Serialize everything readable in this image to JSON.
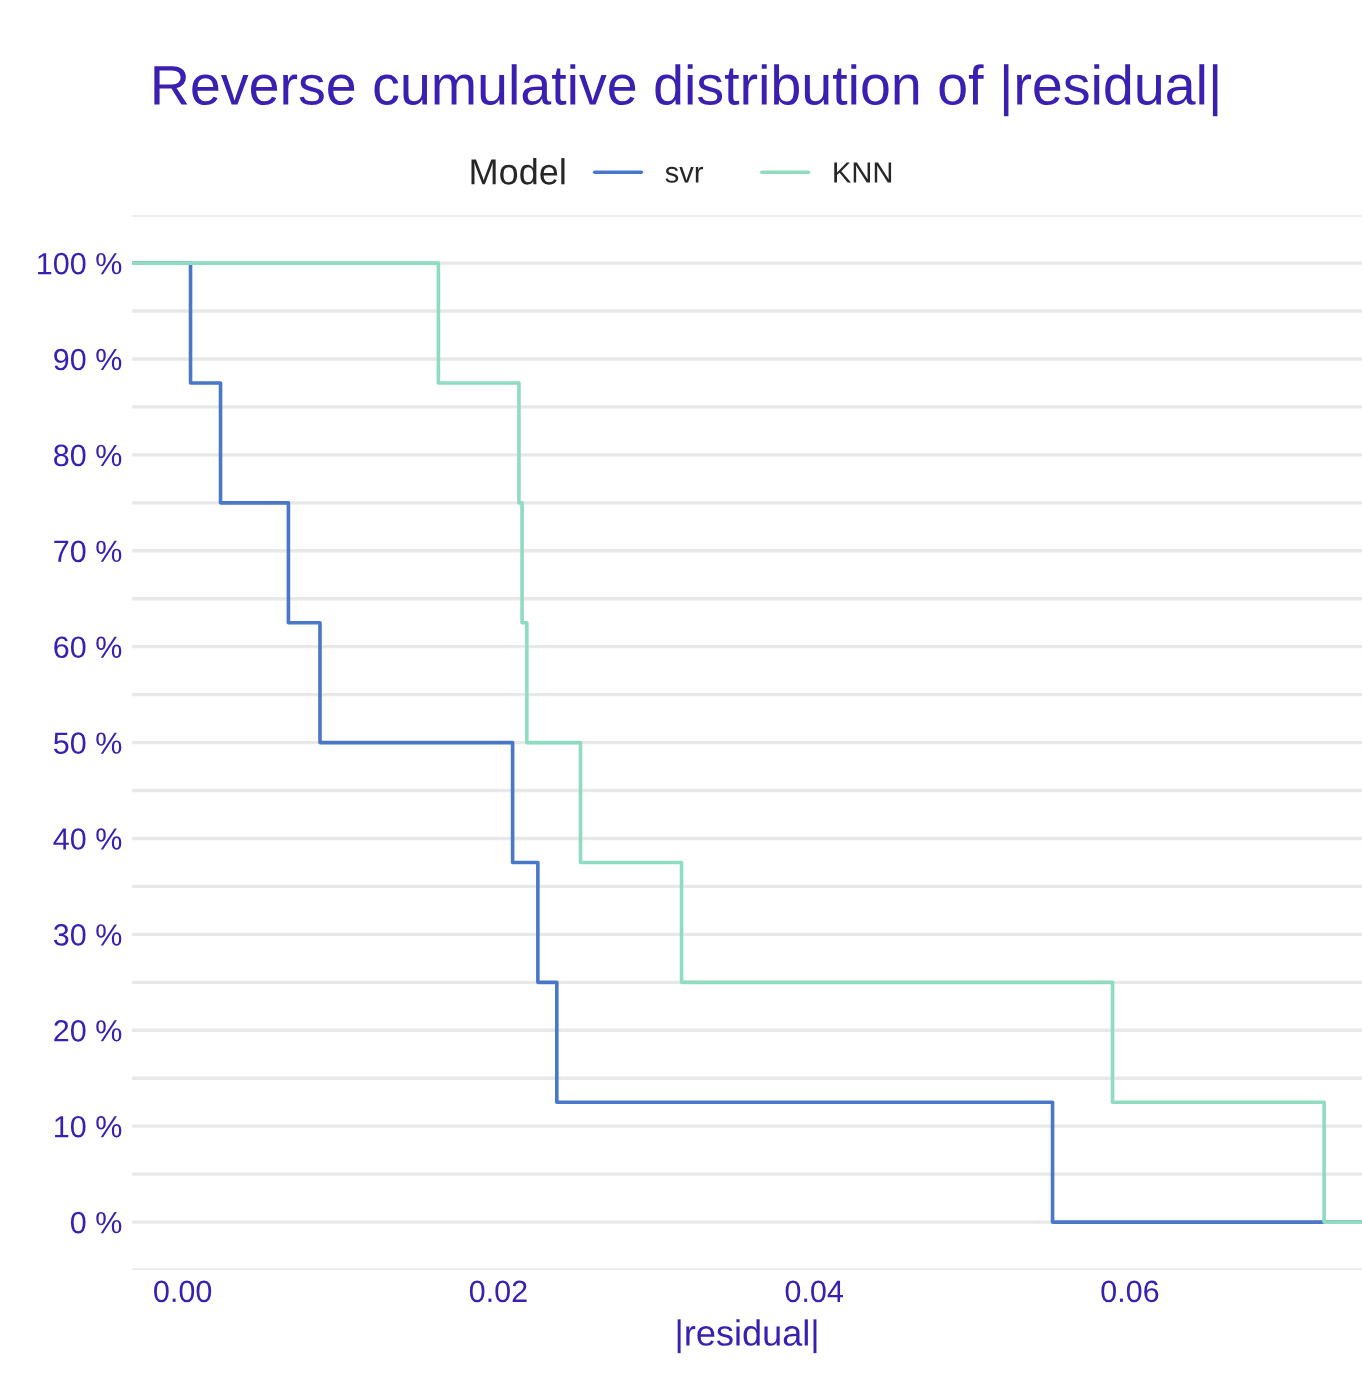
{
  "chart_data": {
    "type": "step",
    "title": "Reverse cumulative distribution of |residual|",
    "xlabel": "|residual|",
    "legend_title": "Model",
    "legend": "top",
    "grid": "y",
    "xlim": [
      -0.0032,
      0.0747
    ],
    "xticks": [
      {
        "value": 0,
        "label": "0.00"
      },
      0.02,
      0.04,
      0.06
    ],
    "ylim": [
      -5,
      105
    ],
    "yticks": [
      {
        "value": 0,
        "label": "0 %"
      },
      {
        "value": 10,
        "label": "10 %"
      },
      {
        "value": 20,
        "label": "20 %"
      },
      {
        "value": 30,
        "label": "30 %"
      },
      {
        "value": 40,
        "label": "40 %"
      },
      {
        "value": 50,
        "label": "50 %"
      },
      {
        "value": 60,
        "label": "60 %"
      },
      {
        "value": 70,
        "label": "70 %"
      },
      {
        "value": 80,
        "label": "80 %"
      },
      {
        "value": 90,
        "label": "90 %"
      },
      {
        "value": 100,
        "label": "100 %"
      }
    ],
    "series": [
      {
        "name": "svr",
        "color": "#4a78c8",
        "x": [
          -0.0032,
          0.0005,
          0.0024,
          0.0067,
          0.0087,
          0.0209,
          0.0225,
          0.0237,
          0.0551,
          0.0747
        ],
        "values": [
          100,
          87.5,
          75,
          62.5,
          50,
          37.5,
          25,
          12.5,
          0,
          0
        ]
      },
      {
        "name": "KNN",
        "color": "#8fdcc0",
        "x": [
          -0.0032,
          0.0162,
          0.0213,
          0.0215,
          0.0218,
          0.0252,
          0.0316,
          0.0589,
          0.0723,
          0.0747
        ],
        "values": [
          100,
          87.5,
          75,
          62.5,
          50,
          37.5,
          25,
          12.5,
          0,
          0
        ]
      }
    ]
  }
}
